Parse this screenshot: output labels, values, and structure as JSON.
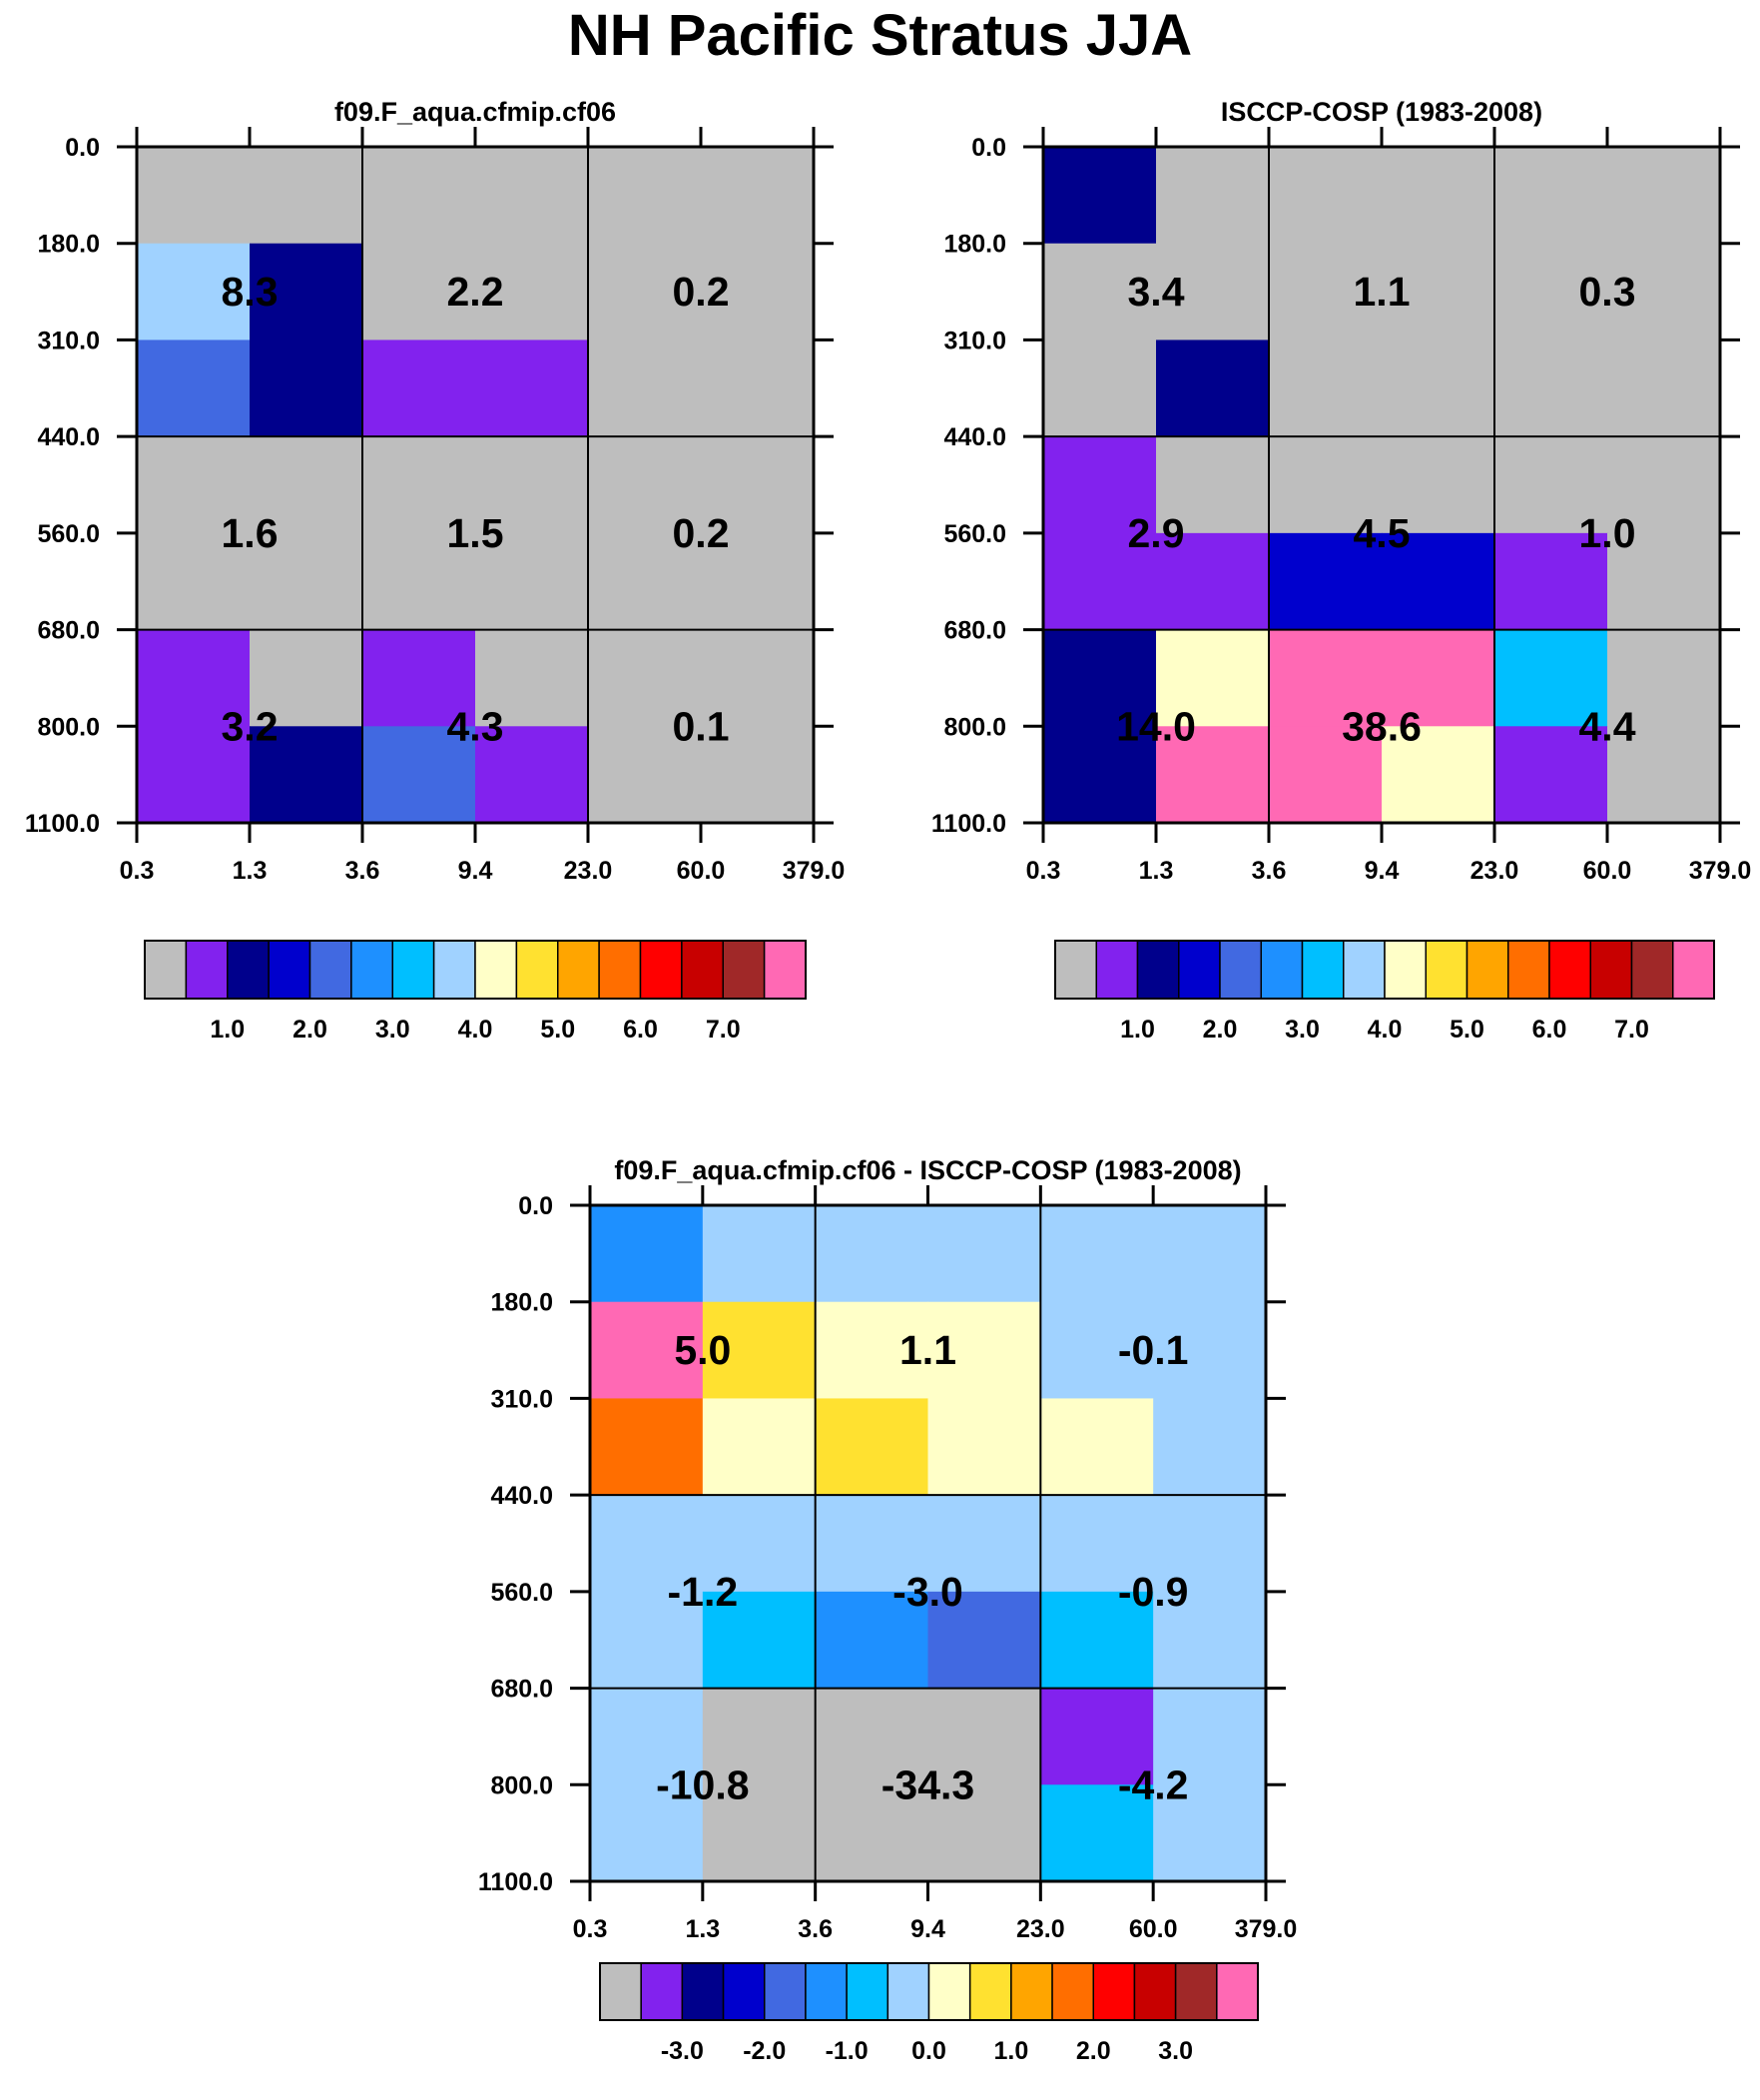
{
  "title": "NH Pacific Stratus JJA",
  "palette": {
    "gray": "#bebebe",
    "violet": "#8222ee",
    "navy": "#00008c",
    "blue": "#0000cd",
    "royal": "#4169e1",
    "dodger": "#1e90ff",
    "sky": "#00bfff",
    "light_blue": "#a0d2ff",
    "cream": "#ffffc8",
    "yellow": "#ffe130",
    "amber": "#ffa500",
    "orange": "#ff6e00",
    "red": "#ff0000",
    "darkred": "#c80000",
    "brown": "#a02828",
    "pink": "#ff69b4"
  },
  "colorbar_swatches": [
    "gray",
    "violet",
    "navy",
    "blue",
    "royal",
    "dodger",
    "sky",
    "light_blue",
    "cream",
    "yellow",
    "amber",
    "orange",
    "red",
    "darkred",
    "brown",
    "pink"
  ],
  "chart_data": [
    {
      "type": "heatmap",
      "title": "f09.F_aqua.cfmip.cf06",
      "x_tick_labels": [
        "0.3",
        "1.3",
        "3.6",
        "9.4",
        "23.0",
        "60.0",
        "379.0"
      ],
      "y_tick_labels": [
        "0.0",
        "180.0",
        "310.0",
        "440.0",
        "560.0",
        "680.0",
        "800.0",
        "1100.0"
      ],
      "cells": [
        [
          "gray",
          "gray",
          "gray",
          "gray",
          "gray",
          "gray"
        ],
        [
          "light_blue",
          "navy",
          "gray",
          "gray",
          "gray",
          "gray"
        ],
        [
          "royal",
          "navy",
          "violet",
          "violet",
          "gray",
          "gray"
        ],
        [
          "gray",
          "gray",
          "gray",
          "gray",
          "gray",
          "gray"
        ],
        [
          "gray",
          "gray",
          "gray",
          "gray",
          "gray",
          "gray"
        ],
        [
          "violet",
          "gray",
          "violet",
          "gray",
          "gray",
          "gray"
        ],
        [
          "violet",
          "navy",
          "royal",
          "violet",
          "gray",
          "gray"
        ]
      ],
      "grouped_values": [
        [
          "8.3",
          "2.2",
          "0.2"
        ],
        [
          "1.6",
          "1.5",
          "0.2"
        ],
        [
          "3.2",
          "4.3",
          "0.1"
        ]
      ],
      "colorbar_labels": [
        "1.0",
        "2.0",
        "3.0",
        "4.0",
        "5.0",
        "6.0",
        "7.0"
      ]
    },
    {
      "type": "heatmap",
      "title": "ISCCP-COSP (1983-2008)",
      "x_tick_labels": [
        "0.3",
        "1.3",
        "3.6",
        "9.4",
        "23.0",
        "60.0",
        "379.0"
      ],
      "y_tick_labels": [
        "0.0",
        "180.0",
        "310.0",
        "440.0",
        "560.0",
        "680.0",
        "800.0",
        "1100.0"
      ],
      "cells": [
        [
          "navy",
          "gray",
          "gray",
          "gray",
          "gray",
          "gray"
        ],
        [
          "gray",
          "gray",
          "gray",
          "gray",
          "gray",
          "gray"
        ],
        [
          "gray",
          "navy",
          "gray",
          "gray",
          "gray",
          "gray"
        ],
        [
          "violet",
          "gray",
          "gray",
          "gray",
          "gray",
          "gray"
        ],
        [
          "violet",
          "violet",
          "blue",
          "blue",
          "violet",
          "gray"
        ],
        [
          "navy",
          "cream",
          "pink",
          "pink",
          "sky",
          "gray"
        ],
        [
          "navy",
          "pink",
          "pink",
          "cream",
          "violet",
          "gray"
        ]
      ],
      "grouped_values": [
        [
          "3.4",
          "1.1",
          "0.3"
        ],
        [
          "2.9",
          "4.5",
          "1.0"
        ],
        [
          "14.0",
          "38.6",
          "4.4"
        ]
      ],
      "colorbar_labels": [
        "1.0",
        "2.0",
        "3.0",
        "4.0",
        "5.0",
        "6.0",
        "7.0"
      ]
    },
    {
      "type": "heatmap",
      "title": "f09.F_aqua.cfmip.cf06 - ISCCP-COSP (1983-2008)",
      "x_tick_labels": [
        "0.3",
        "1.3",
        "3.6",
        "9.4",
        "23.0",
        "60.0",
        "379.0"
      ],
      "y_tick_labels": [
        "0.0",
        "180.0",
        "310.0",
        "440.0",
        "560.0",
        "680.0",
        "800.0",
        "1100.0"
      ],
      "cells": [
        [
          "dodger",
          "light_blue",
          "light_blue",
          "light_blue",
          "light_blue",
          "light_blue"
        ],
        [
          "pink",
          "yellow",
          "cream",
          "cream",
          "light_blue",
          "light_blue"
        ],
        [
          "orange",
          "cream",
          "yellow",
          "cream",
          "cream",
          "light_blue"
        ],
        [
          "light_blue",
          "light_blue",
          "light_blue",
          "light_blue",
          "light_blue",
          "light_blue"
        ],
        [
          "light_blue",
          "sky",
          "dodger",
          "royal",
          "sky",
          "light_blue"
        ],
        [
          "light_blue",
          "gray",
          "gray",
          "gray",
          "violet",
          "light_blue"
        ],
        [
          "light_blue",
          "gray",
          "gray",
          "gray",
          "sky",
          "light_blue"
        ]
      ],
      "grouped_values": [
        [
          "5.0",
          "1.1",
          "-0.1"
        ],
        [
          "-1.2",
          "-3.0",
          "-0.9"
        ],
        [
          "-10.8",
          "-34.3",
          "-4.2"
        ]
      ],
      "colorbar_labels": [
        "-3.0",
        "-2.0",
        "-1.0",
        "0.0",
        "1.0",
        "2.0",
        "3.0"
      ]
    }
  ]
}
